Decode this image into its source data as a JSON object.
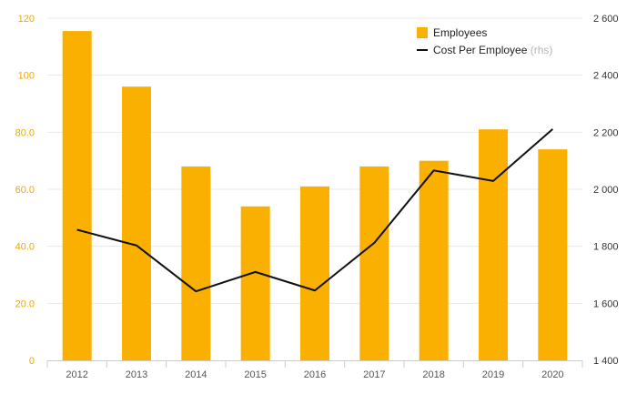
{
  "chart_data": {
    "type": "bar+line",
    "categories": [
      "2012",
      "2013",
      "2014",
      "2015",
      "2016",
      "2017",
      "2018",
      "2019",
      "2020"
    ],
    "series": [
      {
        "name": "Employees",
        "type": "bar",
        "axis": "left",
        "values": [
          115.5,
          96,
          68,
          54,
          61,
          68,
          70,
          81,
          74
        ]
      },
      {
        "name": "Cost Per Employee",
        "type": "line",
        "axis": "right",
        "note": "(rhs)",
        "values": [
          1858,
          1803,
          1642,
          1710,
          1645,
          1812,
          2066,
          2029,
          2211
        ]
      }
    ],
    "left_axis": {
      "ylim": [
        0,
        120
      ],
      "ticks": [
        0,
        20,
        40,
        60,
        80,
        100,
        120
      ],
      "tick_labels": [
        "0",
        "20.0",
        "40.0",
        "60.0",
        "80.0",
        "100",
        "120"
      ]
    },
    "right_axis": {
      "ylim": [
        1400,
        2600
      ],
      "ticks": [
        1400,
        1600,
        1800,
        2000,
        2200,
        2400,
        2600
      ],
      "tick_labels": [
        "1 400",
        "1 600",
        "1 800",
        "2 000",
        "2 200",
        "2 400",
        "2 600"
      ]
    },
    "grid": true,
    "legend_position": "top-right",
    "colors": {
      "bar": "#F9B000",
      "line": "#111111",
      "left_tick": "#F0A800",
      "grid": "#e8e8e8"
    }
  }
}
